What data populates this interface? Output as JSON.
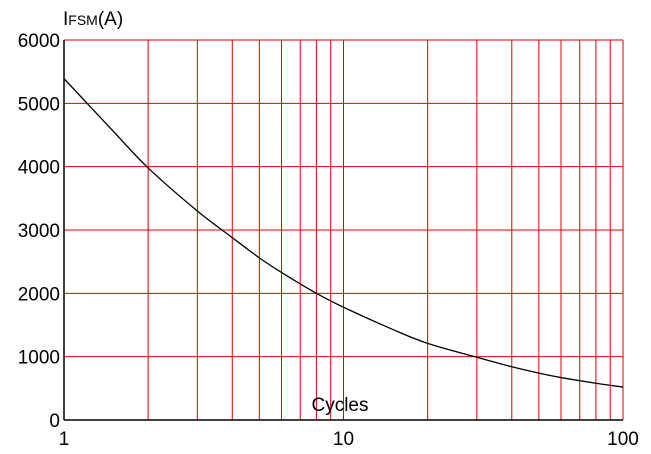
{
  "chart_data": {
    "type": "line",
    "title": "",
    "ylabel_main": "I",
    "ylabel_sub": "FSM",
    "ylabel_unit": "(A)",
    "xlabel": "Cycles",
    "x_scale": "log",
    "xlim": [
      1,
      100
    ],
    "ylim": [
      0,
      6000
    ],
    "x_ticks": [
      1,
      10,
      100
    ],
    "x_tick_labels": [
      "1",
      "10",
      "100"
    ],
    "y_ticks": [
      0,
      1000,
      2000,
      3000,
      4000,
      5000,
      6000
    ],
    "y_tick_labels": [
      "0",
      "1000",
      "2000",
      "3000",
      "4000",
      "5000",
      "6000"
    ],
    "grid": true,
    "grid_color": "#e00000",
    "line_color": "#000000",
    "series": [
      {
        "x": [
          1,
          1.5,
          2,
          3,
          4,
          5,
          6,
          8,
          10,
          15,
          20,
          30,
          40,
          50,
          60,
          80,
          100
        ],
        "y": [
          5390,
          4560,
          3980,
          3300,
          2880,
          2560,
          2330,
          2000,
          1780,
          1430,
          1210,
          990,
          840,
          740,
          670,
          580,
          520
        ]
      }
    ]
  }
}
